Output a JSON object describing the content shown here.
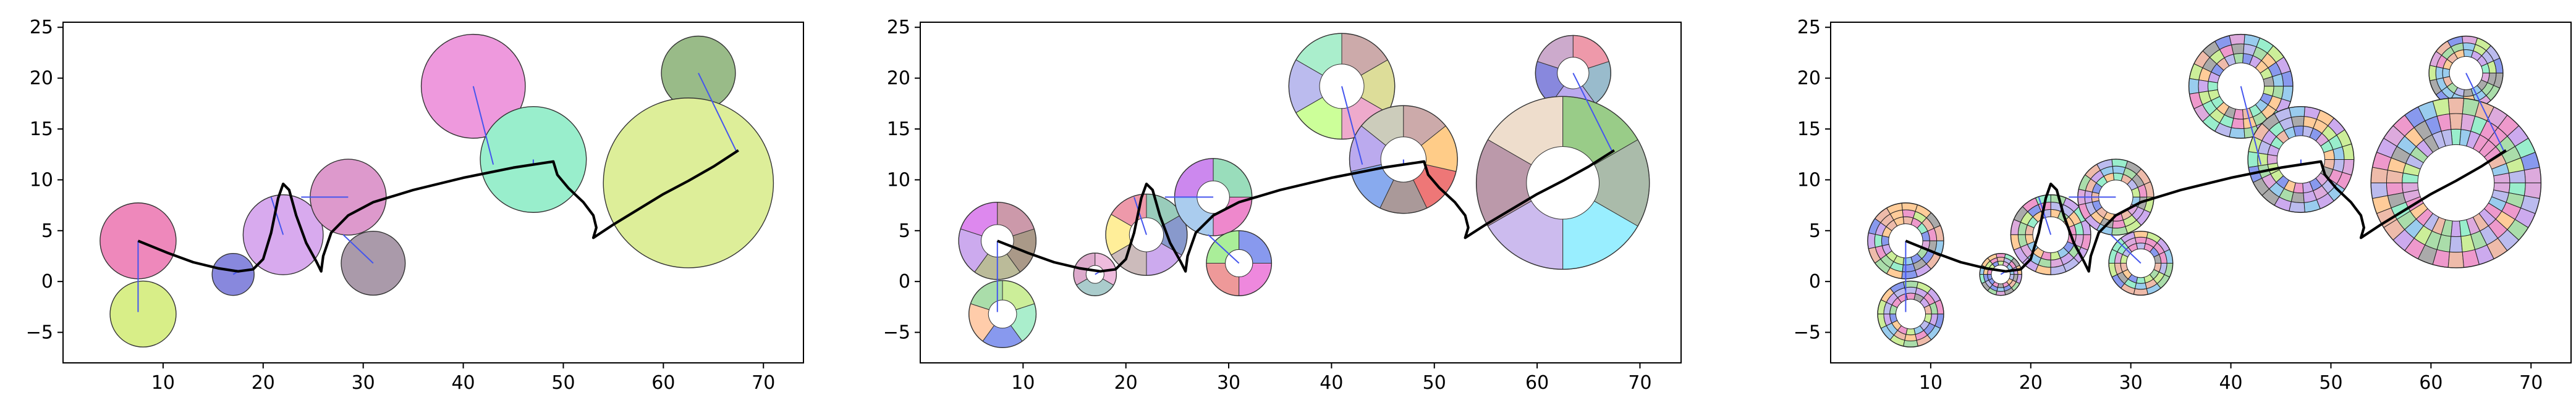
{
  "chart_data": [
    {
      "type": "scatter",
      "variant": "solid-circles",
      "xlim": [
        0,
        74
      ],
      "ylim": [
        -8,
        25.5
      ],
      "xticks": [
        "10",
        "20",
        "30",
        "40",
        "50",
        "60",
        "70"
      ],
      "yticks": [
        "-5",
        "0",
        "5",
        "10",
        "15",
        "20",
        "25"
      ],
      "grid": false,
      "circles": [
        {
          "x": 7.5,
          "y": 4.0,
          "r": 3.8,
          "color": "#ee88bb"
        },
        {
          "x": 8.0,
          "y": -3.2,
          "r": 3.3,
          "color": "#d8ee88"
        },
        {
          "x": 17.0,
          "y": 0.7,
          "r": 2.1,
          "color": "#8888dd"
        },
        {
          "x": 22.0,
          "y": 4.6,
          "r": 4.0,
          "color": "#d8aaee"
        },
        {
          "x": 28.5,
          "y": 8.3,
          "r": 3.8,
          "color": "#dd99cc"
        },
        {
          "x": 31.0,
          "y": 1.8,
          "r": 3.2,
          "color": "#aa9aaa"
        },
        {
          "x": 41.0,
          "y": 19.2,
          "r": 5.2,
          "color": "#ee99dd"
        },
        {
          "x": 47.0,
          "y": 12.0,
          "r": 5.3,
          "color": "#99eecc"
        },
        {
          "x": 63.5,
          "y": 20.5,
          "r": 3.7,
          "color": "#99bb88"
        },
        {
          "x": 62.5,
          "y": 9.7,
          "r": 8.5,
          "color": "#ddee99"
        }
      ]
    },
    {
      "type": "scatter",
      "variant": "pie-donuts",
      "xlim": [
        0,
        74
      ],
      "ylim": [
        -8,
        25.5
      ],
      "xticks": [
        "10",
        "20",
        "30",
        "40",
        "50",
        "60",
        "70"
      ],
      "yticks": [
        "-5",
        "0",
        "5",
        "10",
        "15",
        "20",
        "25"
      ],
      "grid": false,
      "circles": [
        {
          "x": 7.5,
          "y": 4.0,
          "r": 3.8,
          "colors": [
            "#dd88ee",
            "#ccaaee",
            "#bbbb99",
            "#aa9988",
            "#cc99aa"
          ]
        },
        {
          "x": 8.0,
          "y": -3.2,
          "r": 3.3,
          "colors": [
            "#aaddaa",
            "#ffccaa",
            "#8899ee",
            "#aaeecc",
            "#ccee99"
          ]
        },
        {
          "x": 17.0,
          "y": 0.7,
          "r": 2.1,
          "colors": [
            "#ddaacc",
            "#aacccc",
            "#eebbdd"
          ]
        },
        {
          "x": 22.0,
          "y": 4.6,
          "r": 4.0,
          "colors": [
            "#ee99aa",
            "#ffee99",
            "#ccbbbb",
            "#ccaaee",
            "#8899cc",
            "#99ccbb"
          ]
        },
        {
          "x": 28.5,
          "y": 8.3,
          "r": 3.8,
          "colors": [
            "#cc88ee",
            "#aaccee",
            "#ee88cc",
            "#99ddbb"
          ]
        },
        {
          "x": 31.0,
          "y": 1.8,
          "r": 3.2,
          "colors": [
            "#aaee99",
            "#ee9999",
            "#ee88dd",
            "#8899ee"
          ]
        },
        {
          "x": 41.0,
          "y": 19.2,
          "r": 5.2,
          "colors": [
            "#aaeecc",
            "#bbbbee",
            "#ccff99",
            "#eeaacc",
            "#dddd99",
            "#ccaaaa"
          ]
        },
        {
          "x": 47.0,
          "y": 12.0,
          "r": 5.3,
          "colors": [
            "#ccccbb",
            "#bbaaee",
            "#88aaee",
            "#aa9999",
            "#ee7777",
            "#ffcc88",
            "#ccaaaa"
          ]
        },
        {
          "x": 63.5,
          "y": 20.5,
          "r": 3.7,
          "colors": [
            "#ccaacc",
            "#8888dd",
            "#bbaaee",
            "#99bbcc",
            "#ee99aa"
          ]
        },
        {
          "x": 62.5,
          "y": 9.7,
          "r": 8.5,
          "colors": [
            "#eeddcc",
            "#bb99aa",
            "#ccbbee",
            "#99eeff",
            "#aabbaa",
            "#99cc88"
          ]
        }
      ]
    },
    {
      "type": "scatter",
      "variant": "multi-ring-donuts",
      "xlim": [
        0,
        74
      ],
      "ylim": [
        -8,
        25.5
      ],
      "xticks": [
        "10",
        "20",
        "30",
        "40",
        "50",
        "60",
        "70"
      ],
      "yticks": [
        "-5",
        "0",
        "5",
        "10",
        "15",
        "20",
        "25"
      ],
      "grid": false,
      "circles": [
        {
          "x": 7.5,
          "y": 4.0,
          "r": 3.8
        },
        {
          "x": 8.0,
          "y": -3.2,
          "r": 3.3
        },
        {
          "x": 17.0,
          "y": 0.7,
          "r": 2.1
        },
        {
          "x": 22.0,
          "y": 4.6,
          "r": 4.0
        },
        {
          "x": 28.5,
          "y": 8.3,
          "r": 3.8
        },
        {
          "x": 31.0,
          "y": 1.8,
          "r": 3.2
        },
        {
          "x": 41.0,
          "y": 19.2,
          "r": 5.2
        },
        {
          "x": 47.0,
          "y": 12.0,
          "r": 5.3
        },
        {
          "x": 63.5,
          "y": 20.5,
          "r": 3.7
        },
        {
          "x": 62.5,
          "y": 9.7,
          "r": 8.5
        }
      ],
      "palette": [
        "#aaddaa",
        "#ccaaee",
        "#8899ee",
        "#eebbaa",
        "#99ccee",
        "#ee99cc",
        "#ccee99",
        "#aaaaaa",
        "#ffcc99",
        "#99eecc",
        "#ddaadd",
        "#bbbbee"
      ]
    }
  ],
  "shared": {
    "curve": [
      [
        7.5,
        4.0
      ],
      [
        10.5,
        2.8
      ],
      [
        13.0,
        1.9
      ],
      [
        15.5,
        1.3
      ],
      [
        17.5,
        1.0
      ],
      [
        19.0,
        1.2
      ],
      [
        20.0,
        2.2
      ],
      [
        20.8,
        4.8
      ],
      [
        21.5,
        8.2
      ],
      [
        22.0,
        9.6
      ],
      [
        22.6,
        9.0
      ],
      [
        23.3,
        6.5
      ],
      [
        24.3,
        3.8
      ],
      [
        25.3,
        2.0
      ],
      [
        25.8,
        1.0
      ],
      [
        26.0,
        2.5
      ],
      [
        26.8,
        4.8
      ],
      [
        28.5,
        6.5
      ],
      [
        31.0,
        7.8
      ],
      [
        35.0,
        9.0
      ],
      [
        40.0,
        10.2
      ],
      [
        45.0,
        11.2
      ],
      [
        49.0,
        11.8
      ],
      [
        49.4,
        10.5
      ],
      [
        50.5,
        9.2
      ],
      [
        52.0,
        7.8
      ],
      [
        53.0,
        6.5
      ],
      [
        53.3,
        5.3
      ],
      [
        53.0,
        4.3
      ],
      [
        55.0,
        5.6
      ],
      [
        57.5,
        7.1
      ],
      [
        60.0,
        8.6
      ],
      [
        62.5,
        9.9
      ],
      [
        65.0,
        11.3
      ],
      [
        67.5,
        12.9
      ]
    ],
    "connectors": [
      {
        "from": [
          7.5,
          4.0
        ],
        "to": [
          7.5,
          -3.0
        ]
      },
      {
        "from": [
          17.0,
          0.7
        ],
        "to": [
          17.5,
          1.0
        ]
      },
      {
        "from": [
          22.0,
          4.6
        ],
        "to": [
          20.8,
          8.3
        ]
      },
      {
        "from": [
          28.5,
          8.3
        ],
        "to": [
          23.8,
          8.3
        ]
      },
      {
        "from": [
          31.0,
          1.8
        ],
        "to": [
          28.0,
          4.6
        ]
      },
      {
        "from": [
          41.0,
          19.2
        ],
        "to": [
          43.0,
          11.5
        ]
      },
      {
        "from": [
          47.0,
          12.0
        ],
        "to": [
          47.0,
          11.5
        ]
      },
      {
        "from": [
          63.5,
          20.5
        ],
        "to": [
          67.3,
          12.8
        ]
      },
      {
        "from": [
          62.5,
          9.7
        ],
        "to": [
          62.5,
          9.7
        ]
      }
    ]
  }
}
